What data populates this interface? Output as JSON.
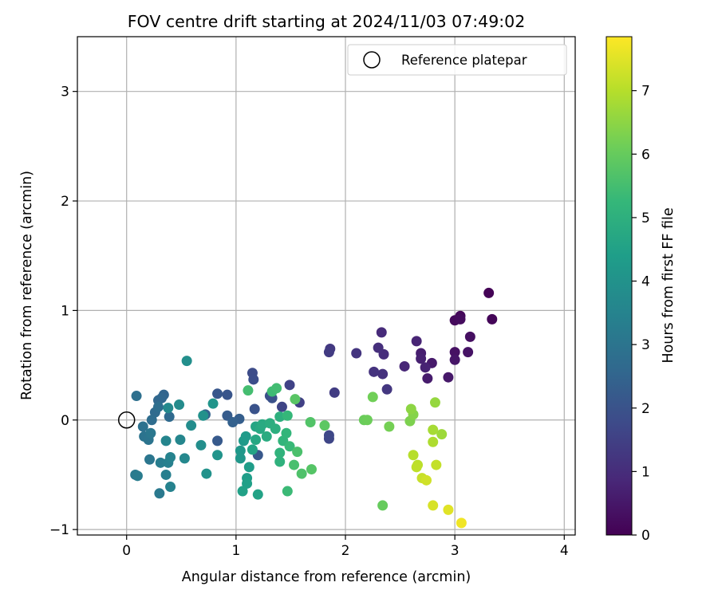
{
  "chart_data": {
    "type": "scatter",
    "title": "FOV centre drift starting at 2024/11/03 07:49:02",
    "xlabel": "Angular distance from reference (arcmin)",
    "ylabel": "Rotation from reference (arcmin)",
    "xlim": [
      -0.45,
      4.1
    ],
    "ylim": [
      -1.05,
      3.5
    ],
    "xticks": [
      0,
      1,
      2,
      3,
      4
    ],
    "yticks": [
      -1,
      0,
      1,
      2,
      3
    ],
    "xtick_labels": [
      "0",
      "1",
      "2",
      "3",
      "4"
    ],
    "ytick_labels": [
      "−1",
      "0",
      "1",
      "2",
      "3"
    ],
    "grid": true,
    "legend": {
      "placement": "top-right",
      "entries": [
        "Reference platepar"
      ]
    },
    "reference_point": {
      "x": 0,
      "y": 0,
      "label": "Reference platepar"
    },
    "colorbar": {
      "label": "Hours from first FF file",
      "colormap": "viridis",
      "range": [
        0,
        7.85
      ],
      "ticks": [
        0,
        1,
        2,
        3,
        4,
        5,
        6,
        7
      ],
      "tick_labels": [
        "0",
        "1",
        "2",
        "3",
        "4",
        "5",
        "6",
        "7"
      ]
    },
    "points": [
      {
        "x": 3.31,
        "y": 1.16,
        "c": 0.05
      },
      {
        "x": 3.34,
        "y": 0.92,
        "c": 0.1
      },
      {
        "x": 3.05,
        "y": 0.95,
        "c": 0.15
      },
      {
        "x": 3.0,
        "y": 0.91,
        "c": 0.2
      },
      {
        "x": 3.05,
        "y": 0.92,
        "c": 0.25
      },
      {
        "x": 3.14,
        "y": 0.76,
        "c": 0.3
      },
      {
        "x": 3.0,
        "y": 0.62,
        "c": 0.35
      },
      {
        "x": 3.12,
        "y": 0.62,
        "c": 0.4
      },
      {
        "x": 3.0,
        "y": 0.55,
        "c": 0.45
      },
      {
        "x": 2.94,
        "y": 0.39,
        "c": 0.5
      },
      {
        "x": 2.79,
        "y": 0.52,
        "c": 0.55
      },
      {
        "x": 2.75,
        "y": 0.38,
        "c": 0.6
      },
      {
        "x": 2.69,
        "y": 0.61,
        "c": 0.65
      },
      {
        "x": 2.69,
        "y": 0.56,
        "c": 0.7
      },
      {
        "x": 2.73,
        "y": 0.48,
        "c": 0.75
      },
      {
        "x": 2.65,
        "y": 0.72,
        "c": 0.8
      },
      {
        "x": 2.54,
        "y": 0.49,
        "c": 0.85
      },
      {
        "x": 2.33,
        "y": 0.8,
        "c": 0.95
      },
      {
        "x": 2.35,
        "y": 0.6,
        "c": 1.0
      },
      {
        "x": 2.3,
        "y": 0.66,
        "c": 1.05
      },
      {
        "x": 2.34,
        "y": 0.42,
        "c": 1.1
      },
      {
        "x": 2.26,
        "y": 0.44,
        "c": 1.15
      },
      {
        "x": 2.1,
        "y": 0.61,
        "c": 1.2
      },
      {
        "x": 2.38,
        "y": 0.28,
        "c": 1.25
      },
      {
        "x": 1.86,
        "y": 0.65,
        "c": 1.3
      },
      {
        "x": 1.85,
        "y": 0.62,
        "c": 1.35
      },
      {
        "x": 1.9,
        "y": 0.25,
        "c": 1.4
      },
      {
        "x": 1.58,
        "y": 0.16,
        "c": 1.5
      },
      {
        "x": 1.49,
        "y": 0.32,
        "c": 1.55
      },
      {
        "x": 1.42,
        "y": 0.12,
        "c": 1.6
      },
      {
        "x": 1.85,
        "y": -0.17,
        "c": 1.65
      },
      {
        "x": 1.85,
        "y": -0.14,
        "c": 1.7
      },
      {
        "x": 1.15,
        "y": 0.43,
        "c": 1.8
      },
      {
        "x": 1.16,
        "y": 0.37,
        "c": 1.85
      },
      {
        "x": 1.31,
        "y": 0.22,
        "c": 1.9
      },
      {
        "x": 1.33,
        "y": 0.2,
        "c": 1.95
      },
      {
        "x": 1.17,
        "y": 0.1,
        "c": 2.0
      },
      {
        "x": 0.92,
        "y": 0.23,
        "c": 2.05
      },
      {
        "x": 0.83,
        "y": 0.24,
        "c": 2.1
      },
      {
        "x": 1.2,
        "y": -0.32,
        "c": 2.15
      },
      {
        "x": 0.83,
        "y": -0.19,
        "c": 2.2
      },
      {
        "x": 0.92,
        "y": 0.04,
        "c": 2.25
      },
      {
        "x": 1.03,
        "y": 0.01,
        "c": 2.3
      },
      {
        "x": 0.97,
        "y": -0.02,
        "c": 2.4
      },
      {
        "x": 0.72,
        "y": 0.05,
        "c": 2.45
      },
      {
        "x": 0.34,
        "y": 0.23,
        "c": 2.5
      },
      {
        "x": 0.32,
        "y": 0.2,
        "c": 2.55
      },
      {
        "x": 0.29,
        "y": 0.18,
        "c": 2.6
      },
      {
        "x": 0.39,
        "y": 0.03,
        "c": 2.65
      },
      {
        "x": 0.26,
        "y": 0.07,
        "c": 2.7
      },
      {
        "x": 0.23,
        "y": 0.0,
        "c": 2.75
      },
      {
        "x": 0.29,
        "y": 0.12,
        "c": 2.8
      },
      {
        "x": 0.09,
        "y": 0.22,
        "c": 2.85
      },
      {
        "x": 0.15,
        "y": -0.06,
        "c": 2.9
      },
      {
        "x": 0.16,
        "y": -0.15,
        "c": 2.95
      },
      {
        "x": 0.2,
        "y": -0.18,
        "c": 3.0
      },
      {
        "x": 0.21,
        "y": -0.36,
        "c": 3.05
      },
      {
        "x": 0.22,
        "y": -0.12,
        "c": 3.1
      },
      {
        "x": 0.3,
        "y": -0.67,
        "c": 3.15
      },
      {
        "x": 0.08,
        "y": -0.5,
        "c": 3.2
      },
      {
        "x": 0.1,
        "y": -0.51,
        "c": 3.25
      },
      {
        "x": 0.31,
        "y": -0.39,
        "c": 3.3
      },
      {
        "x": 0.36,
        "y": -0.5,
        "c": 3.35
      },
      {
        "x": 0.38,
        "y": -0.39,
        "c": 3.4
      },
      {
        "x": 0.4,
        "y": -0.61,
        "c": 3.45
      },
      {
        "x": 0.4,
        "y": -0.34,
        "c": 3.5
      },
      {
        "x": 0.36,
        "y": -0.19,
        "c": 3.55
      },
      {
        "x": 0.49,
        "y": -0.18,
        "c": 3.6
      },
      {
        "x": 0.53,
        "y": -0.35,
        "c": 3.65
      },
      {
        "x": 0.38,
        "y": 0.11,
        "c": 3.7
      },
      {
        "x": 0.48,
        "y": 0.14,
        "c": 3.75
      },
      {
        "x": 0.59,
        "y": -0.05,
        "c": 3.8
      },
      {
        "x": 0.68,
        "y": -0.23,
        "c": 3.85
      },
      {
        "x": 0.55,
        "y": 0.54,
        "c": 3.9
      },
      {
        "x": 0.7,
        "y": 0.04,
        "c": 3.95
      },
      {
        "x": 0.73,
        "y": -0.49,
        "c": 4.0
      },
      {
        "x": 0.83,
        "y": -0.32,
        "c": 4.05
      },
      {
        "x": 0.79,
        "y": 0.15,
        "c": 4.1
      },
      {
        "x": 1.04,
        "y": -0.35,
        "c": 4.15
      },
      {
        "x": 1.04,
        "y": -0.28,
        "c": 4.2
      },
      {
        "x": 1.07,
        "y": -0.19,
        "c": 4.25
      },
      {
        "x": 1.09,
        "y": -0.15,
        "c": 4.3
      },
      {
        "x": 1.12,
        "y": -0.43,
        "c": 4.35
      },
      {
        "x": 1.1,
        "y": -0.53,
        "c": 4.4
      },
      {
        "x": 1.1,
        "y": -0.58,
        "c": 4.45
      },
      {
        "x": 1.06,
        "y": -0.65,
        "c": 4.5
      },
      {
        "x": 1.2,
        "y": -0.68,
        "c": 4.55
      },
      {
        "x": 1.15,
        "y": -0.27,
        "c": 4.6
      },
      {
        "x": 1.18,
        "y": -0.06,
        "c": 4.65
      },
      {
        "x": 1.18,
        "y": -0.18,
        "c": 4.7
      },
      {
        "x": 1.22,
        "y": -0.08,
        "c": 4.75
      },
      {
        "x": 1.24,
        "y": -0.04,
        "c": 4.8
      },
      {
        "x": 1.28,
        "y": -0.15,
        "c": 4.85
      },
      {
        "x": 1.31,
        "y": -0.03,
        "c": 4.9
      },
      {
        "x": 1.36,
        "y": -0.08,
        "c": 4.95
      },
      {
        "x": 1.4,
        "y": 0.03,
        "c": 5.0
      },
      {
        "x": 1.4,
        "y": -0.38,
        "c": 5.05
      },
      {
        "x": 1.4,
        "y": -0.3,
        "c": 5.1
      },
      {
        "x": 1.43,
        "y": -0.19,
        "c": 5.15
      },
      {
        "x": 1.46,
        "y": -0.12,
        "c": 5.2
      },
      {
        "x": 1.47,
        "y": 0.04,
        "c": 5.25
      },
      {
        "x": 1.49,
        "y": -0.24,
        "c": 5.3
      },
      {
        "x": 1.47,
        "y": -0.65,
        "c": 5.35
      },
      {
        "x": 1.33,
        "y": 0.26,
        "c": 5.4
      },
      {
        "x": 1.37,
        "y": 0.29,
        "c": 5.45
      },
      {
        "x": 1.11,
        "y": 0.27,
        "c": 5.5
      },
      {
        "x": 1.53,
        "y": -0.41,
        "c": 5.55
      },
      {
        "x": 1.56,
        "y": -0.29,
        "c": 5.6
      },
      {
        "x": 1.6,
        "y": -0.49,
        "c": 5.65
      },
      {
        "x": 1.68,
        "y": -0.02,
        "c": 5.7
      },
      {
        "x": 1.69,
        "y": -0.45,
        "c": 5.75
      },
      {
        "x": 1.54,
        "y": 0.19,
        "c": 5.8
      },
      {
        "x": 1.81,
        "y": -0.05,
        "c": 5.85
      },
      {
        "x": 2.34,
        "y": -0.78,
        "c": 6.0
      },
      {
        "x": 2.17,
        "y": 0.0,
        "c": 6.05
      },
      {
        "x": 2.2,
        "y": 0.0,
        "c": 6.1
      },
      {
        "x": 2.25,
        "y": 0.21,
        "c": 6.15
      },
      {
        "x": 2.4,
        "y": -0.06,
        "c": 6.2
      },
      {
        "x": 2.59,
        "y": -0.01,
        "c": 6.3
      },
      {
        "x": 2.62,
        "y": 0.05,
        "c": 6.4
      },
      {
        "x": 2.6,
        "y": 0.1,
        "c": 6.5
      },
      {
        "x": 2.82,
        "y": 0.16,
        "c": 6.6
      },
      {
        "x": 2.88,
        "y": -0.13,
        "c": 6.7
      },
      {
        "x": 2.8,
        "y": -0.09,
        "c": 6.8
      },
      {
        "x": 2.8,
        "y": -0.2,
        "c": 6.9
      },
      {
        "x": 2.62,
        "y": -0.32,
        "c": 7.0
      },
      {
        "x": 2.66,
        "y": -0.41,
        "c": 7.05
      },
      {
        "x": 2.65,
        "y": -0.43,
        "c": 7.1
      },
      {
        "x": 2.83,
        "y": -0.41,
        "c": 7.15
      },
      {
        "x": 2.7,
        "y": -0.53,
        "c": 7.2
      },
      {
        "x": 2.74,
        "y": -0.55,
        "c": 7.3
      },
      {
        "x": 2.8,
        "y": -0.78,
        "c": 7.4
      },
      {
        "x": 2.94,
        "y": -0.82,
        "c": 7.5
      },
      {
        "x": 3.06,
        "y": -0.94,
        "c": 7.7
      }
    ]
  }
}
